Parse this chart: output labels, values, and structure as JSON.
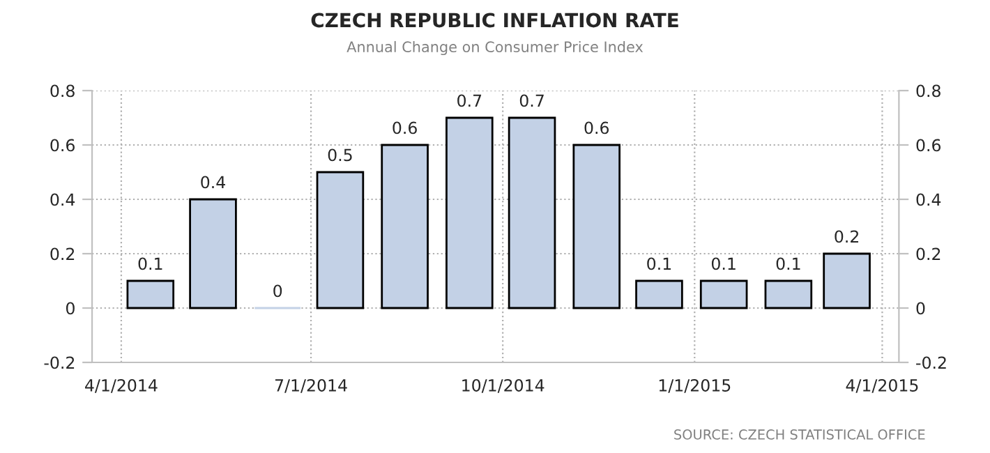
{
  "chart_data": {
    "type": "bar",
    "title": "CZECH REPUBLIC INFLATION RATE",
    "subtitle": "Annual Change on Consumer Price Index",
    "x": [
      "2014-04-15",
      "2014-05-15",
      "2014-06-15",
      "2014-07-15",
      "2014-08-15",
      "2014-09-15",
      "2014-10-15",
      "2014-11-15",
      "2014-12-15",
      "2015-01-15",
      "2015-02-15",
      "2015-03-15"
    ],
    "values": [
      0.1,
      0.4,
      0,
      0.5,
      0.6,
      0.7,
      0.7,
      0.6,
      0.1,
      0.1,
      0.1,
      0.2
    ],
    "color": "#c3d1e6",
    "data_labels": true,
    "xlim": [
      "2014-03-18",
      "2015-04-09"
    ],
    "xticks": [
      {
        "value": "2014-04-01",
        "label": "4/1/2014"
      },
      {
        "value": "2014-07-01",
        "label": "7/1/2014"
      },
      {
        "value": "2014-10-01",
        "label": "10/1/2014"
      },
      {
        "value": "2015-01-01",
        "label": "1/1/2015"
      },
      {
        "value": "2015-04-01",
        "label": "4/1/2015"
      }
    ],
    "ylim": [
      -0.2,
      0.8
    ],
    "yticks": [
      -0.2,
      0,
      0.2,
      0.4,
      0.6,
      0.8
    ],
    "y2lim": [
      -0.2,
      0.8
    ],
    "y2ticks": [
      -0.2,
      0,
      0.2,
      0.4,
      0.6,
      0.8
    ],
    "grid": true,
    "annotations": [
      "SOURCE: CZECH STATISTICAL OFFICE"
    ]
  }
}
